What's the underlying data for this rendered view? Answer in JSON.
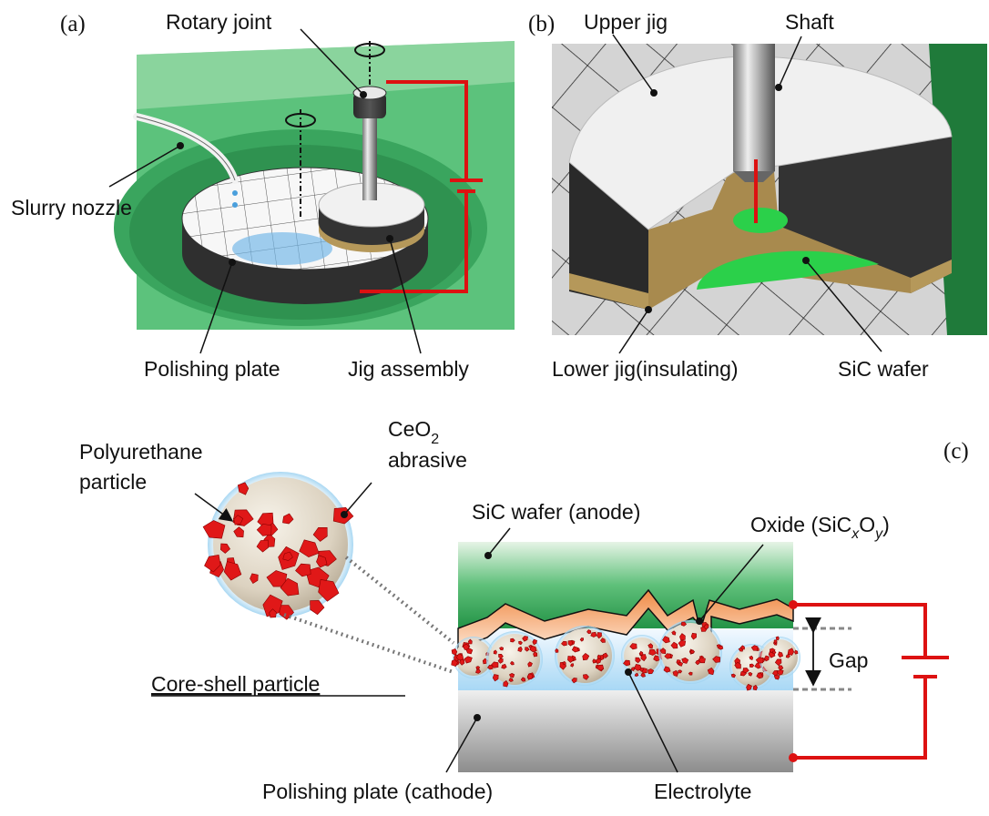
{
  "panels": {
    "a": {
      "tag": "(a)",
      "labels": {
        "rotary_joint": "Rotary joint",
        "slurry_nozzle": "Slurry nozzle",
        "polishing_plate": "Polishing plate",
        "jig_assembly": "Jig assembly"
      }
    },
    "b": {
      "tag": "(b)",
      "labels": {
        "upper_jig": "Upper jig",
        "shaft": "Shaft",
        "lower_jig": "Lower jig(insulating)",
        "sic_wafer": "SiC wafer"
      }
    },
    "c": {
      "tag": "(c)",
      "labels": {
        "ceo2_main": "CeO",
        "ceo2_sub": "2",
        "abrasive": "abrasive",
        "polyurethane": "Polyurethane",
        "particle": "particle",
        "core_shell": "Core-shell particle",
        "sic_anode": "SiC wafer (anode)",
        "oxide_prefix": "Oxide (SiC",
        "oxide_x": "x",
        "oxide_o": "O",
        "oxide_y": "y",
        "oxide_suffix": ")",
        "gap": "Gap",
        "polishing_cathode": "Polishing plate (cathode)",
        "electrolyte": "Electrolyte"
      }
    }
  },
  "colors": {
    "green": "#3dbb6a",
    "dark_green": "#1a7d3a",
    "wire_red": "#dd1111",
    "oxide_orange": "#f4a36a",
    "electrolyte_blue": "#bfe3f7",
    "plate_gray": "#9a9a9a",
    "abrasive_red": "#e01818",
    "particle_core": "#e8e0d2",
    "lower_jig_gold": "#b5985a"
  }
}
